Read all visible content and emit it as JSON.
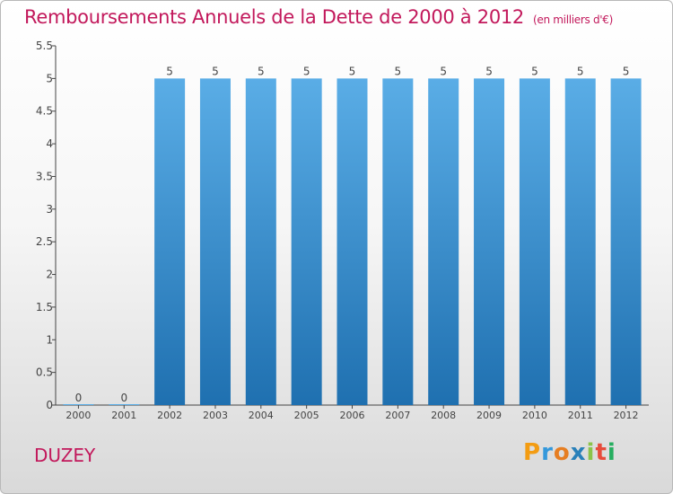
{
  "header": {
    "title": "Remboursements Annuels de la Dette de 2000 à 2012",
    "unit": "(en milliers d'€)"
  },
  "footer": {
    "place": "DUZEY",
    "logo_letters": [
      "P",
      "r",
      "o",
      "x",
      "i",
      "t",
      "i"
    ]
  },
  "chart_data": {
    "type": "bar",
    "title": "Remboursements Annuels de la Dette de 2000 à 2012",
    "xlabel": "",
    "ylabel": "",
    "categories": [
      "2000",
      "2001",
      "2002",
      "2003",
      "2004",
      "2005",
      "2006",
      "2007",
      "2008",
      "2009",
      "2010",
      "2011",
      "2012"
    ],
    "values": [
      0,
      0,
      5,
      5,
      5,
      5,
      5,
      5,
      5,
      5,
      5,
      5,
      5
    ],
    "data_labels": [
      "0",
      "0",
      "5",
      "5",
      "5",
      "5",
      "5",
      "5",
      "5",
      "5",
      "5",
      "5",
      "5"
    ],
    "yticks": [
      "0",
      "0.5",
      "1",
      "1.5",
      "2",
      "2.5",
      "3",
      "3.5",
      "4",
      "4.5",
      "5",
      "5.5"
    ],
    "ylim": [
      0,
      5.5
    ],
    "grid": false,
    "bar_color_top": "#5aade6",
    "bar_color_bottom": "#1f70b0"
  }
}
